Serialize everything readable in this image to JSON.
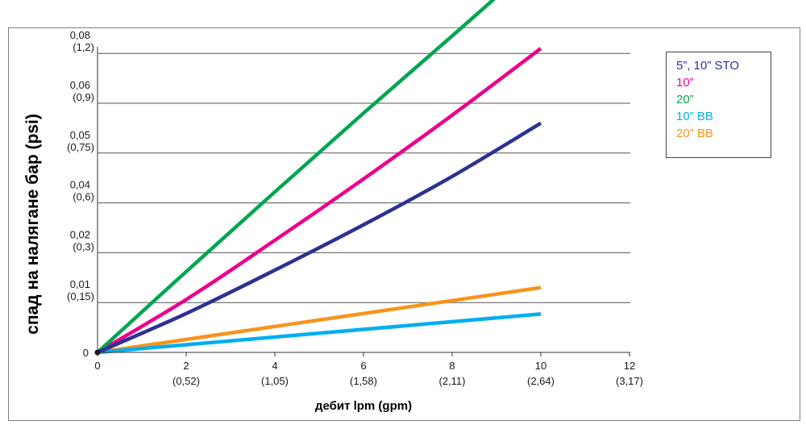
{
  "chart_data": {
    "type": "line",
    "xlabel": "дебит lpm (gpm)",
    "ylabel": "спад на налягане бар (psi)",
    "xlim": [
      0,
      12
    ],
    "x_ticks": [
      {
        "value": 0,
        "label": "0",
        "sub": ""
      },
      {
        "value": 2,
        "label": "2",
        "sub": "(0,52)"
      },
      {
        "value": 4,
        "label": "4",
        "sub": "(1,05)"
      },
      {
        "value": 6,
        "label": "6",
        "sub": "(1,58)"
      },
      {
        "value": 8,
        "label": "8",
        "sub": "(2,11)"
      },
      {
        "value": 10,
        "label": "10",
        "sub": "(2,64)"
      },
      {
        "value": 12,
        "label": "12",
        "sub": "(3,17)"
      }
    ],
    "y_ticks": [
      {
        "label": "0",
        "sub": ""
      },
      {
        "label": "0,01",
        "sub": "(0,15)"
      },
      {
        "label": "0,02",
        "sub": "(0,3)"
      },
      {
        "label": "0,04",
        "sub": "(0,6)"
      },
      {
        "label": "0,05",
        "sub": "(0,75)"
      },
      {
        "label": "0,06",
        "sub": "(0,9)"
      },
      {
        "label": "0,08",
        "sub": "(1,2)"
      }
    ],
    "grid": "horizontal",
    "legend_position": "top-right",
    "series": [
      {
        "name": "5”, 10” STO",
        "color": "#2e3192",
        "x": [
          0,
          2,
          4,
          6,
          8,
          10
        ],
        "y_gridline_units": [
          0,
          0.78,
          1.65,
          2.56,
          3.53,
          4.6
        ]
      },
      {
        "name": "10”",
        "color": "#ec008c",
        "x": [
          0,
          2,
          4,
          6,
          8,
          10
        ],
        "y_gridline_units": [
          0,
          1.06,
          2.25,
          3.48,
          4.76,
          6.1
        ]
      },
      {
        "name": "20”",
        "color": "#00a651",
        "x": [
          0,
          2,
          4,
          6,
          8,
          10
        ],
        "y_gridline_units": [
          0,
          1.62,
          3.22,
          4.8,
          6.35,
          7.92
        ]
      },
      {
        "name": "10” BB",
        "color": "#00aeef",
        "x": [
          0,
          10
        ],
        "y_gridline_units": [
          0,
          0.77
        ]
      },
      {
        "name": "20” BB",
        "color": "#f7941d",
        "x": [
          0,
          10
        ],
        "y_gridline_units": [
          0,
          1.3
        ]
      }
    ]
  }
}
